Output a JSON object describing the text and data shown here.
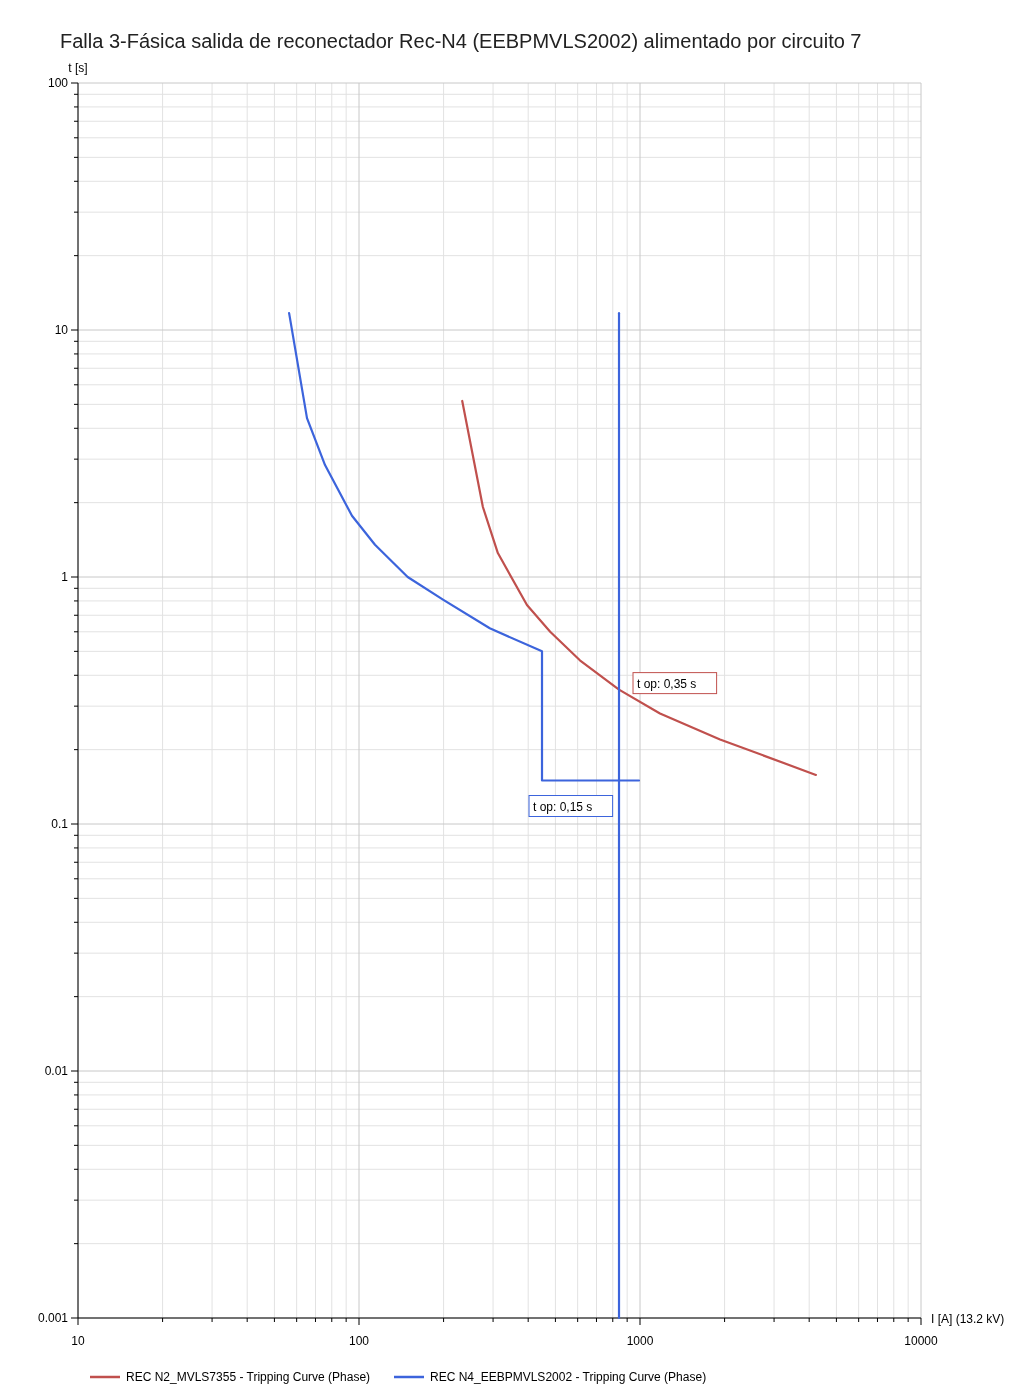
{
  "chart_data": {
    "type": "line",
    "title": "Falla 3-Fásica salida de reconectador Rec-N4 (EEBPMVLS2002) alimentado por circuito 7",
    "xlabel": "I [A] (13.2 kV)",
    "ylabel": "t [s]",
    "log": "xy",
    "xlim": [
      10,
      10000
    ],
    "ylim": [
      0.001,
      100
    ],
    "xticks": [
      10,
      100,
      1000,
      10000
    ],
    "yticks": [
      0.001,
      0.01,
      0.1,
      1,
      10,
      100
    ],
    "grid": true,
    "legend": "bottom",
    "marker": "none",
    "line_style": "solid",
    "series": [
      {
        "name": "REC N2_MVLS7355 - Tripping Curve (Phase)",
        "color": "#c0504d",
        "x": [
          233,
          276,
          312,
          396,
          479,
          611,
          842,
          1178,
          1927,
          4227
        ],
        "values": [
          5.16,
          1.92,
          1.25,
          0.77,
          0.6,
          0.46,
          0.35,
          0.28,
          0.22,
          0.158
        ]
      },
      {
        "name": "REC N4_EEBPMVLS2002 - Tripping Curve (Phase)",
        "color": "#3c64dc",
        "x": [
          56.4,
          65.3,
          75.7,
          94.4,
          114,
          149,
          199,
          292,
          448,
          448,
          992
        ],
        "values": [
          11.7,
          4.4,
          2.84,
          1.77,
          1.35,
          1.0,
          0.81,
          0.62,
          0.5,
          0.15,
          0.15
        ]
      },
      {
        "color": "#3c64dc",
        "x": [
          842,
          842
        ],
        "values": [
          11.7,
          0.001
        ]
      }
    ],
    "annotations": [
      {
        "text": "t op: 0,35 s",
        "x": 842,
        "y": 0.35
      },
      {
        "text": "t op: 0,15 s",
        "x": 842,
        "y": 0.15
      }
    ]
  }
}
